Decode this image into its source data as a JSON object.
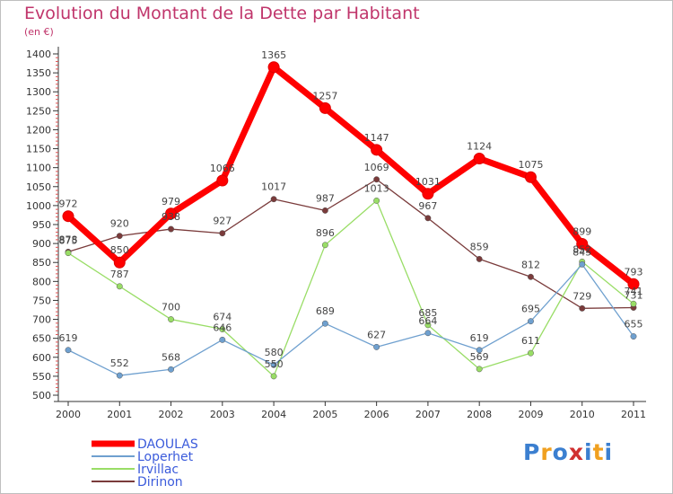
{
  "title": "Evolution du Montant de la Dette par Habitant",
  "subtitle": "(en €)",
  "logo": {
    "letters": [
      "P",
      "r",
      "o",
      "x",
      "i",
      "t",
      "i"
    ],
    "colors": [
      "#3b7fd0",
      "#f0a020",
      "#3b7fd0",
      "#d03030",
      "#3b7fd0",
      "#f0a020",
      "#3b7fd0"
    ]
  },
  "chart_data": {
    "type": "line",
    "x": [
      "2000",
      "2001",
      "2002",
      "2003",
      "2004",
      "2005",
      "2006",
      "2007",
      "2008",
      "2009",
      "2010",
      "2011"
    ],
    "ylim": [
      500,
      1400
    ],
    "yticks": [
      500,
      550,
      600,
      650,
      700,
      750,
      800,
      850,
      900,
      950,
      1000,
      1050,
      1100,
      1150,
      1200,
      1250,
      1300,
      1350,
      1400
    ],
    "grid": false,
    "legend_position": "bottom-left",
    "series": [
      {
        "name": "DAOULAS",
        "color": "#ff0000",
        "values": [
          972,
          850,
          979,
          1066,
          1365,
          1257,
          1147,
          1031,
          1124,
          1075,
          899,
          793
        ],
        "labels": [
          "972",
          "850",
          "979",
          "1066",
          "1365",
          "1257",
          "1147",
          "1031",
          "1124",
          "1075",
          "899",
          "793"
        ]
      },
      {
        "name": "Loperhet",
        "color": "#6fa0cf",
        "values": [
          619,
          552,
          568,
          646,
          580,
          689,
          627,
          664,
          619,
          695,
          845,
          655
        ],
        "labels": [
          "619",
          "552",
          "568",
          "646",
          "580",
          "689",
          "627",
          "664",
          "619",
          "695",
          "845",
          "655"
        ]
      },
      {
        "name": "Irvillac",
        "color": "#99dd66",
        "values": [
          875,
          787,
          700,
          674,
          550,
          896,
          1013,
          685,
          569,
          611,
          852,
          741
        ],
        "labels": [
          "875",
          "787",
          "700",
          "674",
          "550",
          "896",
          "1013",
          "685",
          "569",
          "611",
          "852",
          "741"
        ]
      },
      {
        "name": "Dirinon",
        "color": "#7a3b3b",
        "values": [
          878,
          920,
          938,
          927,
          1017,
          987,
          1069,
          967,
          859,
          812,
          729,
          731
        ],
        "labels": [
          "878",
          "920",
          "938",
          "927",
          "1017",
          "987",
          "1069",
          "967",
          "859",
          "812",
          "729",
          "731"
        ]
      }
    ]
  }
}
